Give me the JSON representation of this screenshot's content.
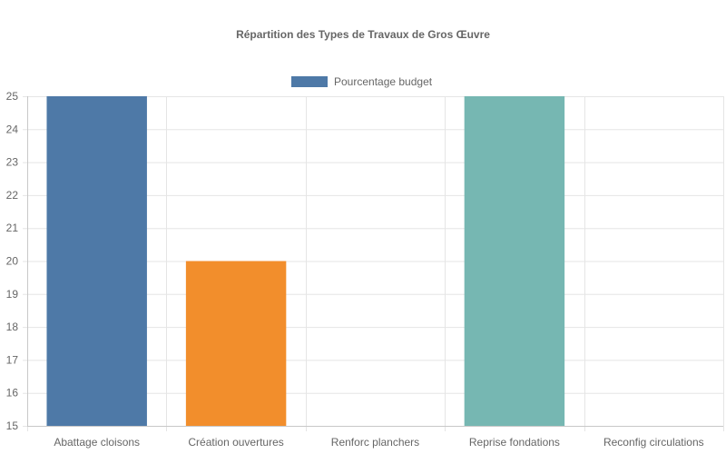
{
  "chart_data": {
    "type": "bar",
    "title": "Répartition des Types de Travaux de Gros Œuvre",
    "categories": [
      "Abattage cloisons",
      "Création ouvertures",
      "Renforc planchers",
      "Reprise fondations",
      "Reconfig circulations"
    ],
    "series": [
      {
        "name": "Pourcentage budget",
        "values": [
          25,
          20,
          15,
          25,
          15
        ],
        "colors": [
          "#4e79a7",
          "#f28e2c",
          "#e15759",
          "#76b7b2",
          "#59a14f"
        ]
      }
    ],
    "ylim": [
      15,
      25
    ],
    "yticks": [
      15,
      16,
      17,
      18,
      19,
      20,
      21,
      22,
      23,
      24,
      25
    ],
    "grid": true,
    "legend": "top",
    "legend_color": "#4e79a7"
  }
}
